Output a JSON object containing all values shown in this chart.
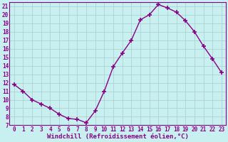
{
  "x": [
    0,
    1,
    2,
    3,
    4,
    5,
    6,
    7,
    8,
    9,
    10,
    11,
    12,
    13,
    14,
    15,
    16,
    17,
    18,
    19,
    20,
    21,
    22,
    23
  ],
  "y": [
    11.8,
    11.0,
    10.0,
    9.5,
    9.0,
    8.3,
    7.8,
    7.7,
    7.3,
    8.7,
    11.0,
    13.9,
    15.5,
    17.0,
    19.4,
    20.0,
    21.2,
    20.8,
    20.3,
    19.3,
    18.0,
    16.3,
    14.8,
    13.2
  ],
  "line_color": "#880088",
  "marker": "+",
  "marker_size": 4,
  "marker_lw": 1.2,
  "bg_color": "#c8f0f0",
  "grid_color": "#aacccc",
  "xlabel": "Windchill (Refroidissement éolien,°C)",
  "xlim": [
    -0.5,
    23.5
  ],
  "ylim": [
    7,
    21.5
  ],
  "ytick_min": 7,
  "ytick_max": 21,
  "xticks": [
    0,
    1,
    2,
    3,
    4,
    5,
    6,
    7,
    8,
    9,
    10,
    11,
    12,
    13,
    14,
    15,
    16,
    17,
    18,
    19,
    20,
    21,
    22,
    23
  ],
  "xlabel_fontsize": 6.5,
  "tick_fontsize": 5.5,
  "label_color": "#880088",
  "spine_color": "#880088",
  "line_width": 1.0
}
